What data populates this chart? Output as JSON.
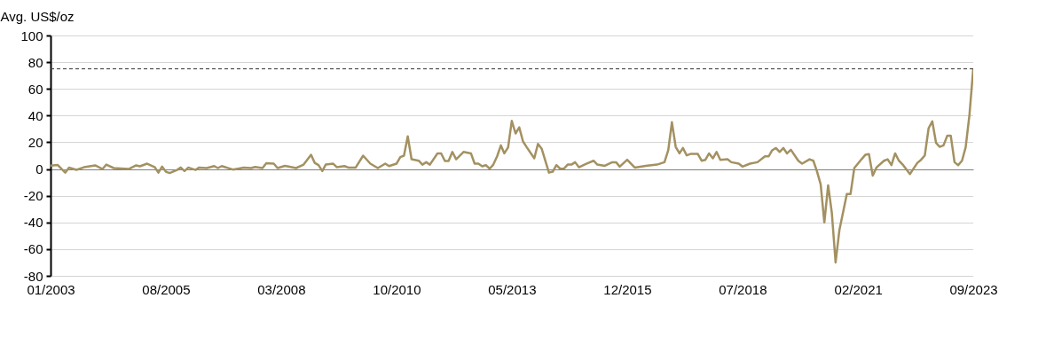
{
  "chart_data": {
    "type": "line",
    "ylabel": "Avg. US$/oz",
    "x": [
      "2003-01",
      "2003-03",
      "2003-05",
      "2003-06",
      "2003-08",
      "2003-10",
      "2004-01",
      "2004-03",
      "2004-04",
      "2004-06",
      "2004-10",
      "2004-12",
      "2005-01",
      "2005-03",
      "2005-05",
      "2005-06",
      "2005-07",
      "2005-08",
      "2005-09",
      "2005-11",
      "2005-12",
      "2006-01",
      "2006-02",
      "2006-04",
      "2006-05",
      "2006-07",
      "2006-09",
      "2006-10",
      "2006-11",
      "2007-02",
      "2007-05",
      "2007-07",
      "2007-08",
      "2007-10",
      "2007-11",
      "2008-01",
      "2008-02",
      "2008-04",
      "2008-05",
      "2008-07",
      "2008-09",
      "2008-11",
      "2008-12",
      "2009-01",
      "2009-02",
      "2009-03",
      "2009-05",
      "2009-06",
      "2009-08",
      "2009-09",
      "2009-11",
      "2010-01",
      "2010-03",
      "2010-05",
      "2010-07",
      "2010-08",
      "2010-10",
      "2010-11",
      "2010-12",
      "2011-01",
      "2011-02",
      "2011-04",
      "2011-05",
      "2011-06",
      "2011-07",
      "2011-09",
      "2011-10",
      "2011-11",
      "2011-12",
      "2012-01",
      "2012-02",
      "2012-04",
      "2012-06",
      "2012-07",
      "2012-08",
      "2012-09",
      "2012-10",
      "2012-11",
      "2012-12",
      "2013-01",
      "2013-02",
      "2013-03",
      "2013-04",
      "2013-05",
      "2013-06",
      "2013-07",
      "2013-08",
      "2013-09",
      "2013-11",
      "2013-12",
      "2014-01",
      "2014-03",
      "2014-04",
      "2014-05",
      "2014-06",
      "2014-07",
      "2014-08",
      "2014-09",
      "2014-10",
      "2014-11",
      "2015-01",
      "2015-03",
      "2015-04",
      "2015-06",
      "2015-08",
      "2015-09",
      "2015-10",
      "2015-12",
      "2016-02",
      "2016-05",
      "2016-08",
      "2016-10",
      "2016-11",
      "2016-12",
      "2017-01",
      "2017-02",
      "2017-03",
      "2017-04",
      "2017-05",
      "2017-07",
      "2017-08",
      "2017-09",
      "2017-10",
      "2017-11",
      "2017-12",
      "2018-01",
      "2018-03",
      "2018-04",
      "2018-06",
      "2018-07",
      "2018-09",
      "2018-11",
      "2019-01",
      "2019-02",
      "2019-03",
      "2019-04",
      "2019-05",
      "2019-06",
      "2019-07",
      "2019-08",
      "2019-10",
      "2019-11",
      "2020-01",
      "2020-02",
      "2020-03",
      "2020-04",
      "2020-05",
      "2020-06",
      "2020-07",
      "2020-08",
      "2020-09",
      "2020-11",
      "2020-12",
      "2021-01",
      "2021-03",
      "2021-04",
      "2021-05",
      "2021-06",
      "2021-07",
      "2021-09",
      "2021-10",
      "2021-11",
      "2021-12",
      "2022-01",
      "2022-02",
      "2022-04",
      "2022-06",
      "2022-07",
      "2022-08",
      "2022-09",
      "2022-10",
      "2022-11",
      "2022-12",
      "2023-01",
      "2023-02",
      "2023-03",
      "2023-04",
      "2023-05",
      "2023-06",
      "2023-07",
      "2023-08",
      "2023-09"
    ],
    "series": [
      {
        "color": "#a39161",
        "values": [
          2.5,
          3,
          -2.7,
          1,
          -0.6,
          1.3,
          2.7,
          0,
          3.3,
          0.7,
          0,
          2.7,
          2,
          4,
          1.5,
          -2.7,
          1.8,
          -2,
          -3,
          -0.7,
          1.1,
          -1.5,
          1.1,
          -0.7,
          1.1,
          0.7,
          2.2,
          0.7,
          2.2,
          -0.4,
          1.1,
          0.7,
          1.5,
          0.7,
          4.4,
          4,
          0.7,
          2.4,
          1.8,
          0.7,
          3.3,
          10.6,
          4.6,
          2.9,
          -1.5,
          3.3,
          4,
          1.3,
          2.2,
          1.1,
          1.1,
          10,
          4,
          0.7,
          4,
          2.2,
          4,
          8.9,
          10,
          24.4,
          7.3,
          6.2,
          3.3,
          5.1,
          3.3,
          11.7,
          11.7,
          6,
          6,
          12.8,
          7.3,
          12.8,
          11.7,
          4,
          4,
          2,
          2.9,
          0.2,
          3.3,
          9.5,
          17.7,
          11.7,
          16.2,
          36,
          26.6,
          31.2,
          20.6,
          16.2,
          8,
          18.8,
          15.1,
          -2.7,
          -2,
          2.9,
          0.2,
          0.2,
          3.3,
          3.3,
          5.1,
          1.3,
          4,
          6.2,
          3.3,
          2.4,
          5.1,
          5.1,
          1.8,
          6.9,
          1.1,
          2.4,
          3.3,
          5.1,
          14,
          35,
          16.6,
          11.7,
          15.7,
          10.2,
          11.3,
          11.3,
          6.2,
          6.9,
          11.7,
          8,
          12.8,
          6.9,
          7.3,
          5.1,
          4,
          1.8,
          4,
          5.1,
          9.5,
          9.5,
          14,
          15.7,
          12.8,
          15.7,
          11.7,
          14.4,
          6.2,
          4,
          7.3,
          6.2,
          -1.5,
          -11.5,
          -40,
          -12.2,
          -32.6,
          -70,
          -45.8,
          -18.8,
          -18.8,
          0.7,
          7.3,
          10.6,
          11.1,
          -4.9,
          1.1,
          6.2,
          7.3,
          2.9,
          11.7,
          6.2,
          3.3,
          -3.8,
          4.6,
          6.9,
          10.2,
          30.6,
          35.7,
          19.5,
          16.6,
          17.7,
          25,
          25,
          5.1,
          2.9,
          6.2,
          16.2,
          40.5,
          75
        ]
      }
    ],
    "xlim": [
      "2003-01",
      "2023-09"
    ],
    "xticks": [
      {
        "value": "2003-01",
        "label": "01/2003"
      },
      {
        "value": "2005-08",
        "label": "08/2005"
      },
      {
        "value": "2008-03",
        "label": "03/2008"
      },
      {
        "value": "2010-10",
        "label": "10/2010"
      },
      {
        "value": "2013-05",
        "label": "05/2013"
      },
      {
        "value": "2015-12",
        "label": "12/2015"
      },
      {
        "value": "2018-07",
        "label": "07/2018"
      },
      {
        "value": "2021-02",
        "label": "02/2021"
      },
      {
        "value": "2023-09",
        "label": "09/2023"
      }
    ],
    "ylim": [
      -80,
      100
    ],
    "yticks": [
      -80,
      -60,
      -40,
      -20,
      0,
      20,
      40,
      60,
      80,
      100
    ],
    "ref_lines": [
      {
        "axis": "y",
        "value": 75,
        "color": "#333333",
        "line_style": "dashed"
      }
    ],
    "grid": "y",
    "marker": "none",
    "line_style": "solid"
  }
}
